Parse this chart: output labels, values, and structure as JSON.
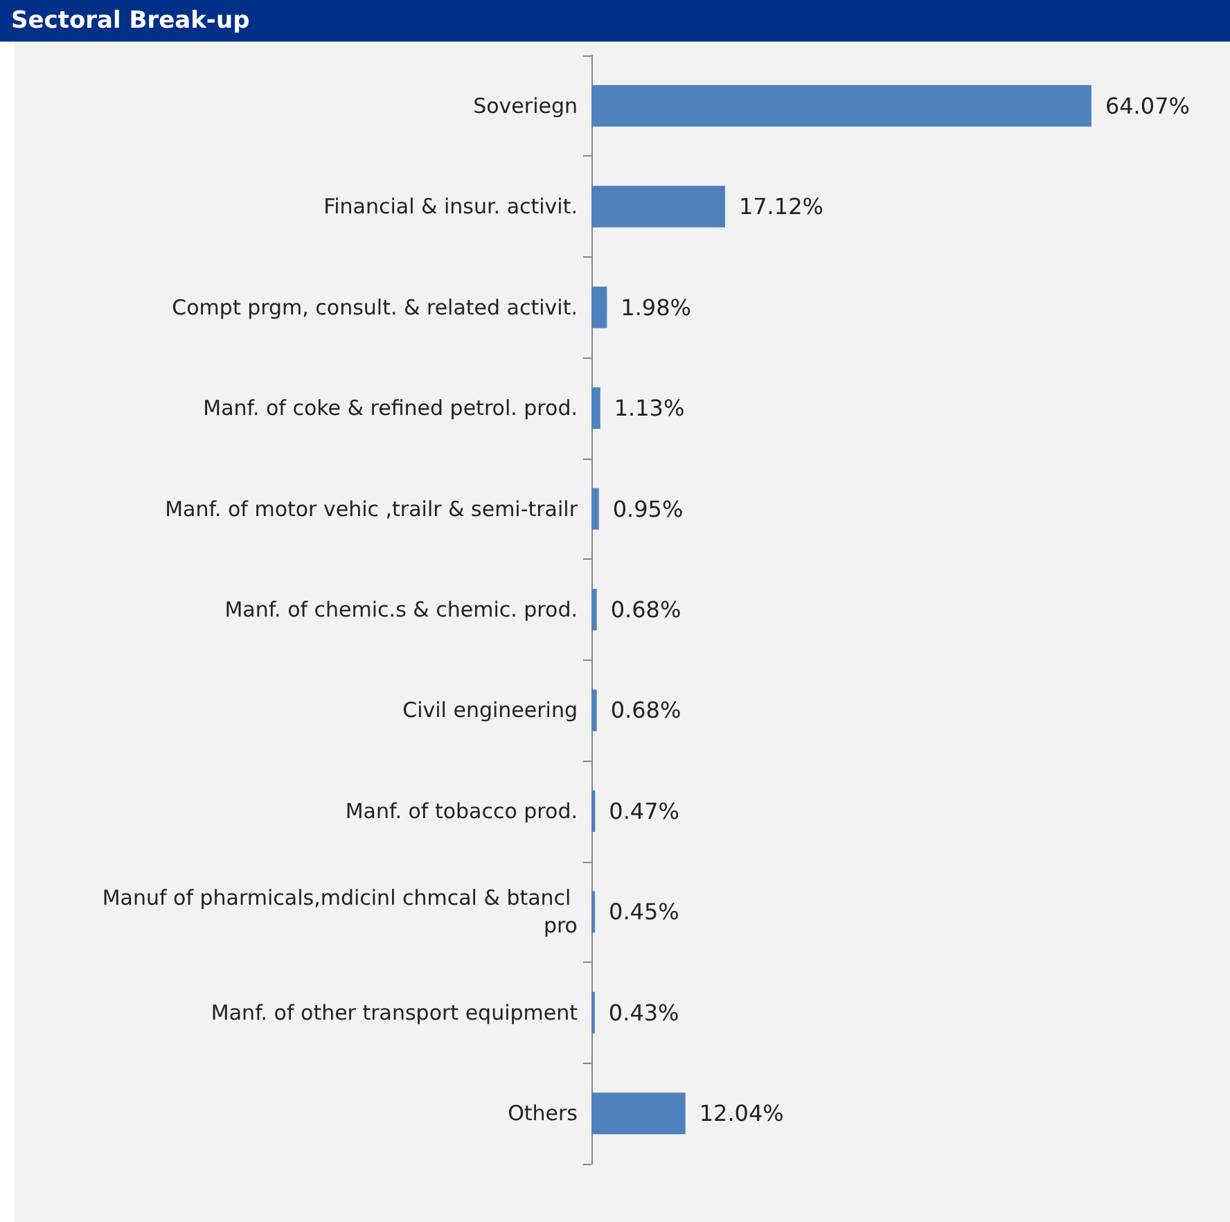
{
  "chart_data": {
    "type": "bar",
    "orientation": "horizontal",
    "title": "Sectoral Break-up",
    "categories": [
      "Soveriegn",
      "Financial & insur. activit.",
      "Compt prgm, consult. & related activit.",
      "Manf. of coke & refined petrol. prod.",
      "Manf. of motor vehic ,trailr & semi-trailr",
      "Manf. of chemic.s & chemic. prod.",
      "Civil engineering",
      "Manf. of tobacco prod.",
      "Manuf of pharmicals,mdicinl chmcal & btancl pro",
      "Manf. of other transport equipment",
      "Others"
    ],
    "values": [
      64.07,
      17.12,
      1.98,
      1.13,
      0.95,
      0.68,
      0.68,
      0.47,
      0.45,
      0.43,
      12.04
    ],
    "value_labels": [
      "64.07%",
      "17.12%",
      "1.98%",
      "1.13%",
      "0.95%",
      "0.68%",
      "0.68%",
      "0.47%",
      "0.45%",
      "0.43%",
      "12.04%"
    ],
    "color": "#4f81bd"
  }
}
